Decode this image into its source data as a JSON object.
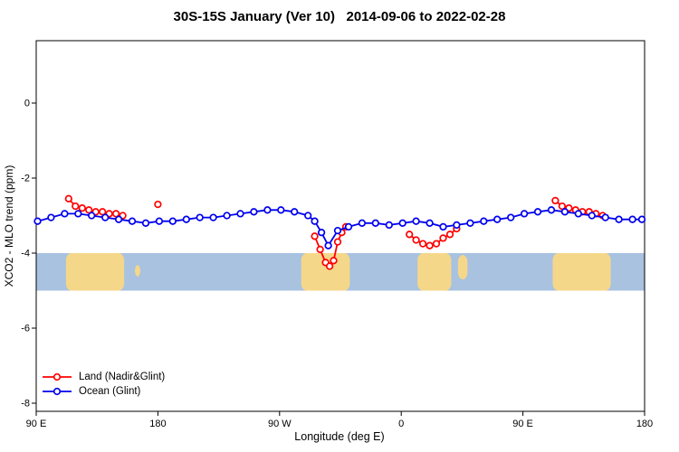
{
  "chart_data": {
    "type": "line",
    "title": "30S-15S January (Ver 10)   2014-09-06 to 2022-02-28",
    "xlabel": "Longitude (deg E)",
    "ylabel": "XCO2 - MLO trend (ppm)",
    "xlim": [
      90,
      540
    ],
    "ylim": [
      -8.2,
      1.7
    ],
    "grid": false,
    "legend_position": "bottom-left",
    "x_axis_note": "longitude wraps eastward: 90E - 180 - 90W - 0 - 90E - 180",
    "xticks": [
      {
        "pos": 90,
        "label": "90 E"
      },
      {
        "pos": 180,
        "label": "180"
      },
      {
        "pos": 270,
        "label": "90 W"
      },
      {
        "pos": 360,
        "label": "0"
      },
      {
        "pos": 450,
        "label": "90 E"
      },
      {
        "pos": 540,
        "label": "180"
      }
    ],
    "yticks": [
      {
        "pos": 0,
        "label": "0"
      },
      {
        "pos": -2,
        "label": "-2"
      },
      {
        "pos": -4,
        "label": "-4"
      },
      {
        "pos": -6,
        "label": "-6"
      },
      {
        "pos": -8,
        "label": "-8"
      }
    ],
    "series": [
      {
        "id": "land",
        "name": "Land (Nadir&Glint)",
        "color": "#ff0000",
        "marker": "open-circle",
        "segments": [
          [
            [
              114,
              -2.55
            ],
            [
              119,
              -2.75
            ],
            [
              124,
              -2.8
            ],
            [
              129,
              -2.85
            ],
            [
              134,
              -2.9
            ],
            [
              139,
              -2.9
            ],
            [
              144,
              -2.95
            ],
            [
              149,
              -2.95
            ],
            [
              154,
              -3.0
            ]
          ],
          [
            [
              180,
              -2.7
            ]
          ],
          [
            [
              296,
              -3.55
            ],
            [
              300,
              -3.9
            ],
            [
              304,
              -4.25
            ],
            [
              307,
              -4.35
            ],
            [
              310,
              -4.2
            ],
            [
              313,
              -3.7
            ],
            [
              316,
              -3.45
            ],
            [
              319,
              -3.3
            ]
          ],
          [
            [
              366,
              -3.5
            ],
            [
              371,
              -3.65
            ],
            [
              376,
              -3.75
            ],
            [
              381,
              -3.8
            ],
            [
              386,
              -3.75
            ],
            [
              391,
              -3.6
            ],
            [
              396,
              -3.5
            ],
            [
              401,
              -3.35
            ]
          ],
          [
            [
              474,
              -2.6
            ],
            [
              479,
              -2.75
            ],
            [
              484,
              -2.8
            ],
            [
              489,
              -2.85
            ],
            [
              494,
              -2.9
            ],
            [
              499,
              -2.9
            ],
            [
              504,
              -2.95
            ],
            [
              509,
              -3.0
            ]
          ]
        ]
      },
      {
        "id": "ocean",
        "name": "Ocean (Glint)",
        "color": "#0000ee",
        "marker": "open-circle",
        "segments": [
          [
            [
              91,
              -3.15
            ],
            [
              101,
              -3.05
            ],
            [
              111,
              -2.95
            ],
            [
              121,
              -2.95
            ],
            [
              131,
              -3.0
            ],
            [
              141,
              -3.05
            ],
            [
              151,
              -3.1
            ],
            [
              161,
              -3.15
            ],
            [
              171,
              -3.2
            ],
            [
              181,
              -3.15
            ],
            [
              191,
              -3.15
            ],
            [
              201,
              -3.1
            ],
            [
              211,
              -3.05
            ],
            [
              221,
              -3.05
            ],
            [
              231,
              -3.0
            ],
            [
              241,
              -2.95
            ],
            [
              251,
              -2.9
            ],
            [
              261,
              -2.85
            ],
            [
              271,
              -2.85
            ],
            [
              281,
              -2.9
            ],
            [
              291,
              -3.0
            ],
            [
              296,
              -3.15
            ],
            [
              301,
              -3.45
            ],
            [
              306,
              -3.8
            ],
            [
              313,
              -3.4
            ],
            [
              321,
              -3.3
            ],
            [
              331,
              -3.2
            ],
            [
              341,
              -3.2
            ],
            [
              351,
              -3.25
            ],
            [
              361,
              -3.2
            ],
            [
              371,
              -3.15
            ],
            [
              381,
              -3.2
            ],
            [
              391,
              -3.3
            ],
            [
              401,
              -3.25
            ],
            [
              411,
              -3.2
            ],
            [
              421,
              -3.15
            ],
            [
              431,
              -3.1
            ],
            [
              441,
              -3.05
            ],
            [
              451,
              -2.95
            ],
            [
              461,
              -2.9
            ],
            [
              471,
              -2.85
            ],
            [
              481,
              -2.9
            ],
            [
              491,
              -2.95
            ],
            [
              501,
              -3.0
            ],
            [
              511,
              -3.05
            ],
            [
              521,
              -3.1
            ],
            [
              531,
              -3.1
            ],
            [
              538,
              -3.1
            ]
          ]
        ]
      }
    ],
    "map_band": {
      "description": "map strip of 30S-15S latitude band drawn across plot",
      "top": -4.0,
      "bottom": -5.0,
      "ocean_color": "#a8c2e0",
      "land_color": "#f5d78a",
      "land_spans": [
        {
          "name": "australia-west",
          "x0": 112,
          "x1": 155
        },
        {
          "name": "new-caledonia",
          "x0": 163,
          "x1": 167,
          "top": 0.32,
          "bottom": 0.62
        },
        {
          "name": "south-america",
          "x0": 286,
          "x1": 322
        },
        {
          "name": "southern-africa",
          "x0": 372,
          "x1": 397
        },
        {
          "name": "madagascar",
          "x0": 402,
          "x1": 409,
          "top": 0.05,
          "bottom": 0.7
        },
        {
          "name": "australia-east",
          "x0": 472,
          "x1": 515
        }
      ]
    }
  }
}
